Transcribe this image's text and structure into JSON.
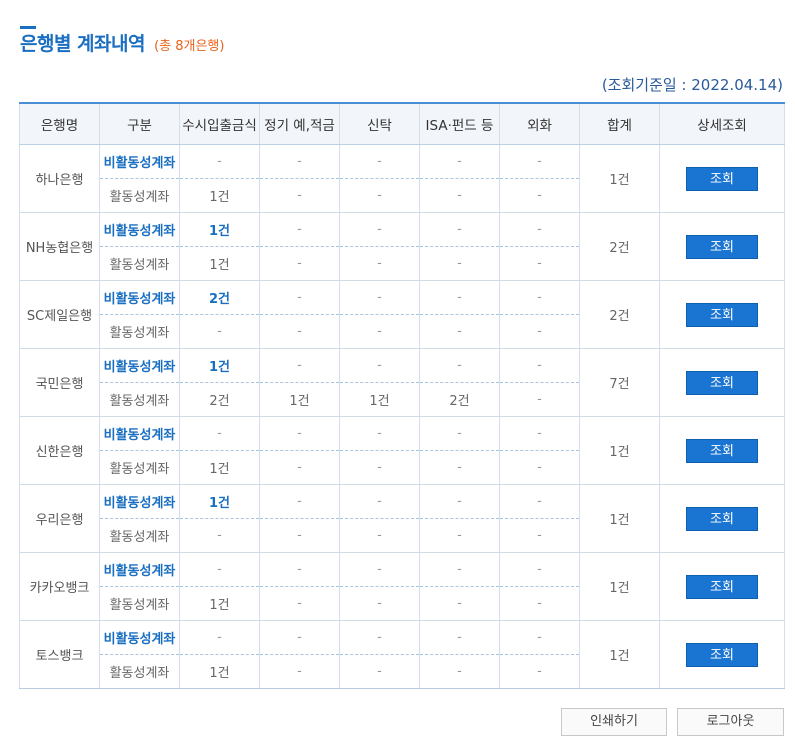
{
  "header": {
    "title": "은행별 계좌내역",
    "subtitle": "(총 8개은행)",
    "basis_date": "(조회기준일 : 2022.04.14)"
  },
  "table": {
    "columns": [
      "은행명",
      "구분",
      "수시입출금식",
      "정기 예,적금",
      "신탁",
      "ISA·펀드 등",
      "외화",
      "합계",
      "상세조회"
    ],
    "rows": [
      {
        "bank": "하나은행",
        "total": "1건",
        "button": "조회",
        "inactive": {
          "type": "비활동성계좌",
          "vals": [
            "-",
            "-",
            "-",
            "-",
            "-"
          ]
        },
        "active": {
          "type": "활동성계좌",
          "vals": [
            "1건",
            "-",
            "-",
            "-",
            "-"
          ]
        }
      },
      {
        "bank": "NH농협은행",
        "total": "2건",
        "button": "조회",
        "inactive": {
          "type": "비활동성계좌",
          "vals": [
            "1건",
            "-",
            "-",
            "-",
            "-"
          ]
        },
        "active": {
          "type": "활동성계좌",
          "vals": [
            "1건",
            "-",
            "-",
            "-",
            "-"
          ]
        }
      },
      {
        "bank": "SC제일은행",
        "total": "2건",
        "button": "조회",
        "inactive": {
          "type": "비활동성계좌",
          "vals": [
            "2건",
            "-",
            "-",
            "-",
            "-"
          ]
        },
        "active": {
          "type": "활동성계좌",
          "vals": [
            "-",
            "-",
            "-",
            "-",
            "-"
          ]
        }
      },
      {
        "bank": "국민은행",
        "total": "7건",
        "button": "조회",
        "inactive": {
          "type": "비활동성계좌",
          "vals": [
            "1건",
            "-",
            "-",
            "-",
            "-"
          ]
        },
        "active": {
          "type": "활동성계좌",
          "vals": [
            "2건",
            "1건",
            "1건",
            "2건",
            "-"
          ]
        }
      },
      {
        "bank": "신한은행",
        "total": "1건",
        "button": "조회",
        "inactive": {
          "type": "비활동성계좌",
          "vals": [
            "-",
            "-",
            "-",
            "-",
            "-"
          ]
        },
        "active": {
          "type": "활동성계좌",
          "vals": [
            "1건",
            "-",
            "-",
            "-",
            "-"
          ]
        }
      },
      {
        "bank": "우리은행",
        "total": "1건",
        "button": "조회",
        "inactive": {
          "type": "비활동성계좌",
          "vals": [
            "1건",
            "-",
            "-",
            "-",
            "-"
          ]
        },
        "active": {
          "type": "활동성계좌",
          "vals": [
            "-",
            "-",
            "-",
            "-",
            "-"
          ]
        }
      },
      {
        "bank": "카카오뱅크",
        "total": "1건",
        "button": "조회",
        "inactive": {
          "type": "비활동성계좌",
          "vals": [
            "-",
            "-",
            "-",
            "-",
            "-"
          ]
        },
        "active": {
          "type": "활동성계좌",
          "vals": [
            "1건",
            "-",
            "-",
            "-",
            "-"
          ]
        }
      },
      {
        "bank": "토스뱅크",
        "total": "1건",
        "button": "조회",
        "inactive": {
          "type": "비활동성계좌",
          "vals": [
            "-",
            "-",
            "-",
            "-",
            "-"
          ]
        },
        "active": {
          "type": "활동성계좌",
          "vals": [
            "1건",
            "-",
            "-",
            "-",
            "-"
          ]
        }
      }
    ]
  },
  "footer": {
    "print_label": "인쇄하기",
    "logout_label": "로그아웃"
  },
  "colors": {
    "accent": "#1a6fc1",
    "subtitle": "#e8641b",
    "button": "#1a74d2"
  }
}
